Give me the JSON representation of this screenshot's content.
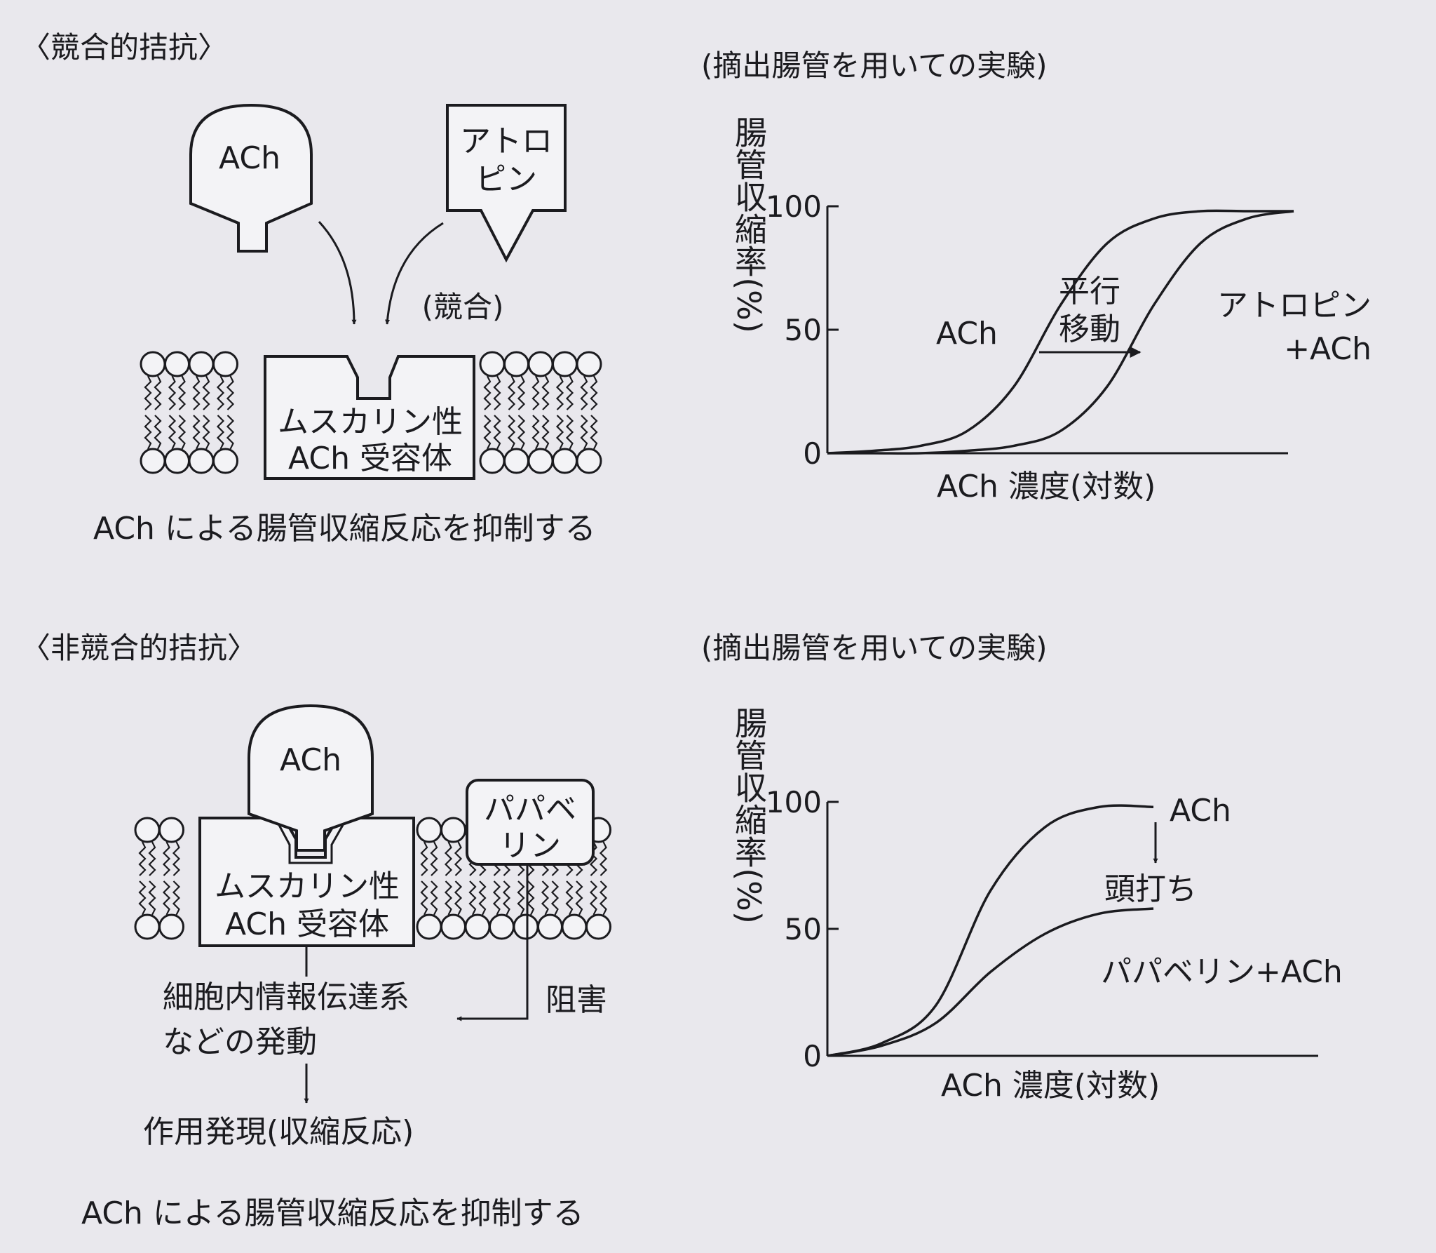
{
  "competitive": {
    "heading": "〈競合的拮抗〉",
    "agonist_label": "ACh",
    "antagonist_label_line1": "アトロ",
    "antagonist_label_line2": "ピン",
    "competition_label": "(競合)",
    "receptor_line1": "ムスカリン性",
    "receptor_line2": "ACh 受容体",
    "caption": "ACh による腸管収縮反応を抑制する",
    "chart_title": "(摘出腸管を用いての実験)"
  },
  "noncompetitive": {
    "heading": "〈非競合的拮抗〉",
    "agonist_label": "ACh",
    "antagonist_label_line1": "パパベ",
    "antagonist_label_line2": "リン",
    "receptor_line1": "ムスカリン性",
    "receptor_line2": "ACh 受容体",
    "pathway_line1": "細胞内情報伝達系",
    "pathway_line2": "などの発動",
    "inhibit_label": "阻害",
    "effect_label": "作用発現(収縮反応)",
    "caption": "ACh による腸管収縮反応を抑制する",
    "chart_title": "(摘出腸管を用いての実験)"
  },
  "chart_data": [
    {
      "type": "line",
      "xlabel": "ACh 濃度(対数)",
      "ylabel": "腸管収縮率(%)",
      "x_scale": "log (no tick labels)",
      "ylim": [
        0,
        100
      ],
      "yticks": [
        "0",
        "50",
        "100"
      ],
      "x": [
        0,
        0.5,
        1,
        1.5,
        2,
        2.5,
        3,
        3.5,
        4,
        4.5,
        5
      ],
      "series": [
        {
          "name": "ACh",
          "values": [
            0,
            1,
            3,
            9,
            27,
            60,
            85,
            95,
            98,
            98,
            98
          ]
        },
        {
          "name": "アトロピン+ACh",
          "values": [
            0,
            0,
            0,
            1,
            3,
            9,
            27,
            60,
            85,
            95,
            98
          ]
        }
      ],
      "annotations": [
        {
          "text_line1": "平行",
          "text_line2": "移動",
          "arrow": "right"
        }
      ]
    },
    {
      "type": "line",
      "xlabel": "ACh 濃度(対数)",
      "ylabel": "腸管収縮率(%)",
      "x_scale": "log (no tick labels)",
      "ylim": [
        0,
        100
      ],
      "yticks": [
        "0",
        "50",
        "100"
      ],
      "x": [
        0,
        0.5,
        1,
        1.5,
        2,
        2.5,
        3
      ],
      "series": [
        {
          "name": "ACh",
          "values": [
            0,
            5,
            20,
            65,
            90,
            98,
            98
          ]
        },
        {
          "name": "パパベリン+ACh",
          "values": [
            0,
            4,
            13,
            33,
            48,
            56,
            58
          ]
        }
      ],
      "annotations": [
        {
          "text": "頭打ち",
          "arrow": "down"
        }
      ]
    }
  ]
}
